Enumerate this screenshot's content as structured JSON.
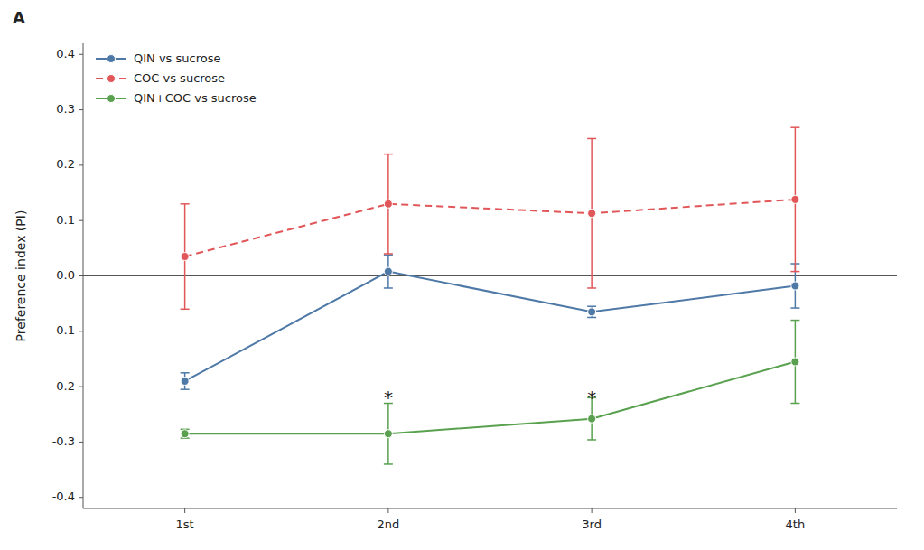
{
  "chart_data": {
    "type": "line",
    "title": "A",
    "y_label": "Preference index (PI)",
    "categories": [
      "1st",
      "2nd",
      "3rd",
      "4th"
    ],
    "series": [
      {
        "name": "QIN vs sucrose",
        "color": "#4e79a7",
        "line_style": "solid",
        "marker": "circle",
        "values": [
          -0.19,
          0.008,
          -0.065,
          -0.018
        ],
        "yerr_low": [
          0.015,
          0.03,
          0.01,
          0.04
        ],
        "yerr_high": [
          0.015,
          0.03,
          0.01,
          0.04
        ]
      },
      {
        "name": "COC vs sucrose",
        "color": "#e15759",
        "line_style": "dashed",
        "marker": "circle",
        "values": [
          0.035,
          0.13,
          0.113,
          0.138
        ],
        "yerr_low": [
          0.095,
          0.09,
          0.135,
          0.13
        ],
        "yerr_high": [
          0.095,
          0.09,
          0.135,
          0.13
        ]
      },
      {
        "name": "QIN+COC vs sucrose",
        "color": "#59a14f",
        "line_style": "solid",
        "marker": "circle",
        "values": [
          -0.285,
          -0.285,
          -0.258,
          -0.155
        ],
        "yerr_low": [
          0.008,
          0.055,
          0.038,
          0.075
        ],
        "yerr_high": [
          0.008,
          0.055,
          0.038,
          0.075
        ]
      }
    ],
    "annotations": [
      {
        "text": "*",
        "x": "2nd",
        "y": -0.21
      },
      {
        "text": "*",
        "x": "3rd",
        "y": -0.21
      }
    ],
    "ylim": [
      -0.42,
      0.42
    ],
    "yticks": [
      -0.4,
      -0.3,
      -0.2,
      -0.1,
      {
        "value": 0,
        "label": "0.0"
      },
      0.1,
      0.2,
      0.3,
      0.4
    ],
    "legend": "upper left",
    "grid": false
  }
}
